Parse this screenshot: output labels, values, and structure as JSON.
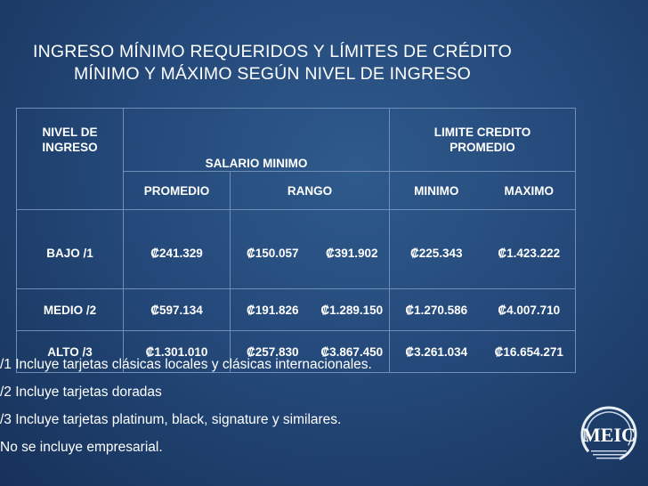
{
  "title": {
    "line1": "INGRESO MÍNIMO REQUERIDOS Y LÍMITES DE CRÉDITO",
    "line2": "MÍNIMO Y MÁXIMO SEGÚN NIVEL DE INGRESO"
  },
  "table": {
    "header": {
      "nivel_line1": "NIVEL DE",
      "nivel_line2": "INGRESO",
      "salario": "SALARIO MINIMO",
      "limite_line1": "LIMITE  CREDITO",
      "limite_line2": "PROMEDIO",
      "promedio": "PROMEDIO",
      "rango": "RANGO",
      "minimo": "MINIMO",
      "maximo": "MAXIMO"
    },
    "rows": [
      {
        "nivel": "BAJO  /1",
        "promedio": "₡241.329",
        "rango_min": "₡150.057",
        "rango_max": "₡391.902",
        "minimo": "₡225.343",
        "maximo": "₡1.423.222"
      },
      {
        "nivel": "MEDIO  /2",
        "promedio": "₡597.134",
        "rango_min": "₡191.826",
        "rango_max": "₡1.289.150",
        "minimo": "₡1.270.586",
        "maximo": "₡4.007.710"
      },
      {
        "nivel": "ALTO  /3",
        "promedio": "₡1.301.010",
        "rango_min": "₡257.830",
        "rango_max": "₡3.867.450",
        "minimo": "₡3.261.034",
        "maximo": "₡16.654.271"
      }
    ]
  },
  "notes": [
    "/1  Incluye tarjetas clásicas locales y clásicas internacionales.",
    "/2  Incluye tarjetas doradas",
    "/3  Incluye tarjetas platinum, black, signature y similares.",
    "No se incluye empresarial."
  ],
  "logo": {
    "text": "MEIC",
    "icon": "meic-logo-icon"
  }
}
